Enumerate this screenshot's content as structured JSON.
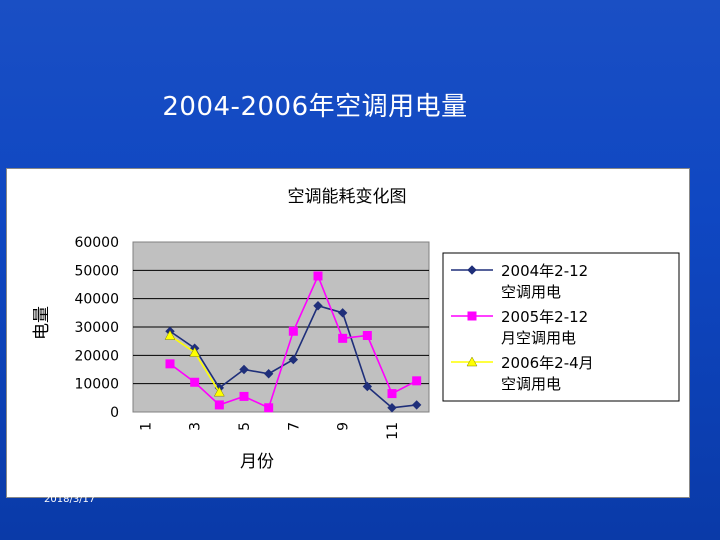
{
  "slide": {
    "title": "2004-2006年空调用电量",
    "date": "2018/3/17"
  },
  "colors": {
    "background": "#0f47c2",
    "plot_area": "#c0c0c0",
    "series_2004": "#1f2f7a",
    "series_2005": "#ff00ff",
    "series_2006": "#ffff00"
  },
  "chart_data": {
    "type": "line",
    "title": "空调能耗变化图",
    "xlabel": "月份",
    "ylabel": "电量",
    "ylim": [
      0,
      60000
    ],
    "yticks": [
      "60000",
      "50000",
      "40000",
      "30000",
      "20000",
      "10000",
      "0"
    ],
    "x": [
      1,
      2,
      3,
      4,
      5,
      6,
      7,
      8,
      9,
      10,
      11,
      12
    ],
    "x_tick_labels": [
      "1",
      "3",
      "5",
      "7",
      "9",
      "11"
    ],
    "grid": true,
    "legend_position": "right",
    "series": [
      {
        "name": "2004年2-12空调用电",
        "color": "#1f2f7a",
        "marker": "diamond",
        "x": [
          2,
          3,
          4,
          5,
          6,
          7,
          8,
          9,
          10,
          11,
          12
        ],
        "values": [
          28500,
          22500,
          8500,
          15000,
          13500,
          18500,
          37500,
          35000,
          9000,
          1500,
          2500
        ]
      },
      {
        "name": "2005年2-12月空调用电",
        "color": "#ff00ff",
        "marker": "square",
        "x": [
          2,
          3,
          4,
          5,
          6,
          7,
          8,
          9,
          10,
          11,
          12
        ],
        "values": [
          17000,
          10500,
          2500,
          5500,
          1500,
          28500,
          48000,
          26000,
          27000,
          6500,
          11000
        ]
      },
      {
        "name": "2006年2-4月空调用电",
        "color": "#ffff00",
        "marker": "triangle",
        "x": [
          2,
          3,
          4
        ],
        "values": [
          27000,
          21000,
          7000
        ]
      }
    ]
  }
}
